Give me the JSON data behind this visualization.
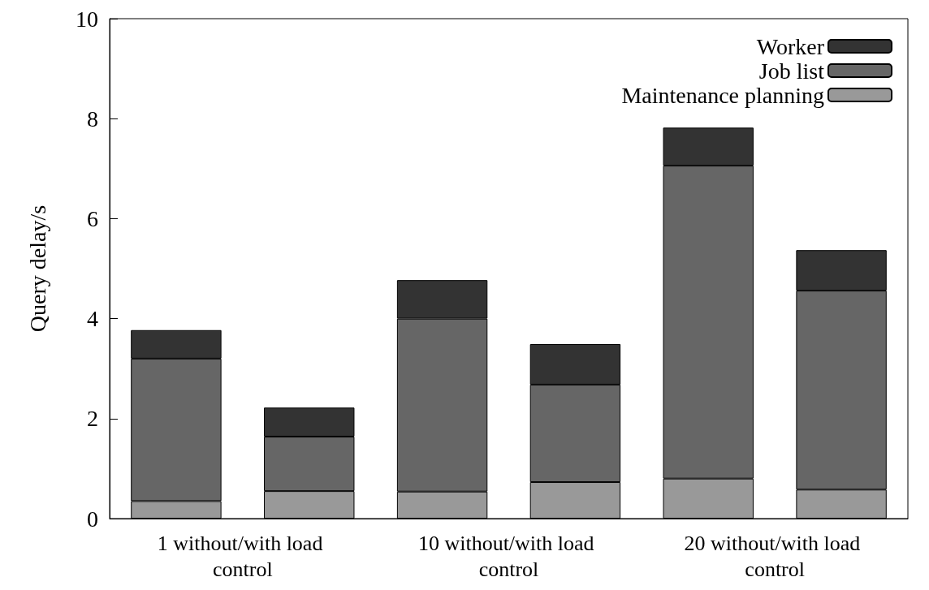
{
  "chart_data": {
    "type": "bar",
    "stacked": true,
    "ylabel": "Query delay/s",
    "categories": [
      null,
      null,
      null,
      null,
      null,
      null
    ],
    "series": [
      {
        "name": "Maintenance planning",
        "color": "#999999",
        "values": [
          0.35,
          0.55,
          0.54,
          0.73,
          0.8,
          0.58
        ]
      },
      {
        "name": "Job list",
        "color": "#666666",
        "values": [
          2.85,
          1.09,
          3.46,
          1.95,
          6.26,
          3.98
        ]
      },
      {
        "name": "Worker",
        "color": "#333333",
        "values": [
          0.57,
          0.58,
          0.77,
          0.81,
          0.76,
          0.81
        ]
      }
    ],
    "ylim": [
      0,
      10
    ],
    "yticks": [
      0,
      2,
      4,
      6,
      8,
      10
    ],
    "grid": false,
    "legend": "top right",
    "annotations": [
      "1 without/with load control",
      "10 without/with load control",
      "20 without/with load control"
    ]
  }
}
